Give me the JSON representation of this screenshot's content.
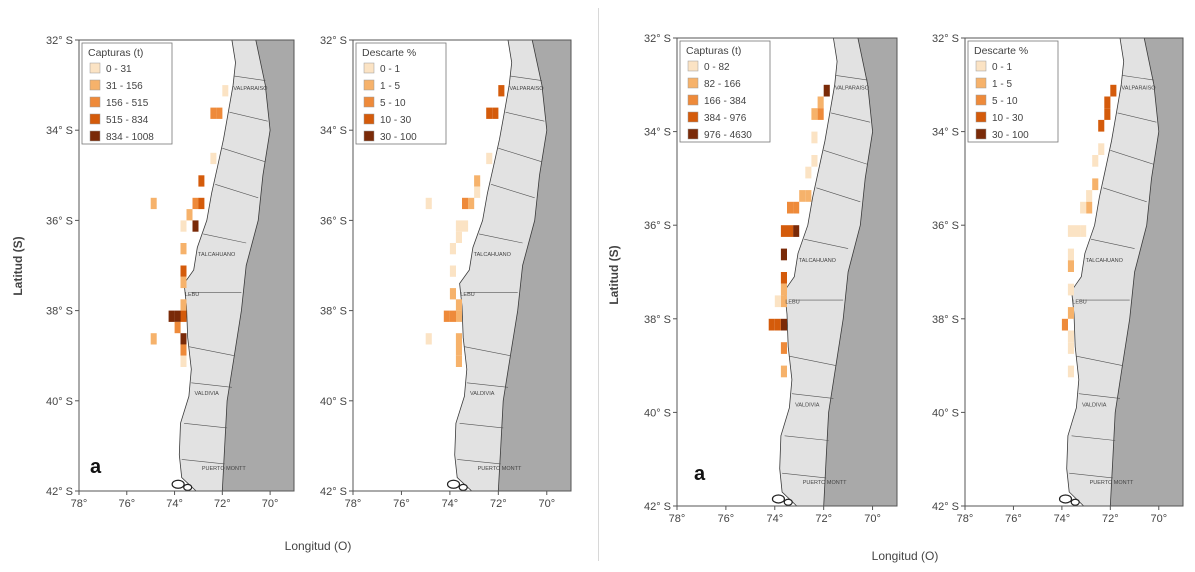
{
  "figures": [
    {
      "id": "left",
      "ylabel": "Latitud (S)",
      "xlabel": "Longitud (O)",
      "panel_letter": "a",
      "y_ticks": [
        "32° S",
        "34° S",
        "36° S",
        "38° S",
        "40° S",
        "42° S"
      ],
      "x_ticks": [
        "78°",
        "76°",
        "74°",
        "72°",
        "70°"
      ],
      "cities": [
        "VALPARAISO",
        "TALCAHUANO",
        "LEBU",
        "VALDIVIA",
        "PUERTO MONTT"
      ],
      "maps": [
        {
          "legend_title": "Capturas  (t)",
          "legend": [
            {
              "label": "0 - 31",
              "color": "#fbe3c4"
            },
            {
              "label": "31 - 156",
              "color": "#f6b26b"
            },
            {
              "label": "156 - 515",
              "color": "#ee8a3a"
            },
            {
              "label": "515 - 834",
              "color": "#d45b0b"
            },
            {
              "label": "834 - 1008",
              "color": "#7a2a08"
            }
          ],
          "cells": [
            {
              "lon": -71.875,
              "lat": -33.125,
              "c": 0
            },
            {
              "lon": -72.125,
              "lat": -33.625,
              "c": 2
            },
            {
              "lon": -72.375,
              "lat": -33.625,
              "c": 2
            },
            {
              "lon": -72.375,
              "lat": -34.625,
              "c": 0
            },
            {
              "lon": -72.875,
              "lat": -35.125,
              "c": 3
            },
            {
              "lon": -72.875,
              "lat": -35.625,
              "c": 3
            },
            {
              "lon": -73.125,
              "lat": -35.625,
              "c": 2
            },
            {
              "lon": -74.875,
              "lat": -35.625,
              "c": 1
            },
            {
              "lon": -73.125,
              "lat": -36.125,
              "c": 4
            },
            {
              "lon": -73.375,
              "lat": -35.875,
              "c": 1
            },
            {
              "lon": -73.625,
              "lat": -36.125,
              "c": 0
            },
            {
              "lon": -73.625,
              "lat": -36.625,
              "c": 1
            },
            {
              "lon": -73.625,
              "lat": -37.125,
              "c": 3
            },
            {
              "lon": -73.625,
              "lat": -37.375,
              "c": 1
            },
            {
              "lon": -73.625,
              "lat": -37.875,
              "c": 1
            },
            {
              "lon": -73.625,
              "lat": -38.125,
              "c": 3
            },
            {
              "lon": -73.875,
              "lat": -38.125,
              "c": 4
            },
            {
              "lon": -74.125,
              "lat": -38.125,
              "c": 4
            },
            {
              "lon": -73.875,
              "lat": -38.375,
              "c": 2
            },
            {
              "lon": -73.625,
              "lat": -38.625,
              "c": 4
            },
            {
              "lon": -74.875,
              "lat": -38.625,
              "c": 1
            },
            {
              "lon": -73.625,
              "lat": -38.875,
              "c": 2
            },
            {
              "lon": -73.625,
              "lat": -39.125,
              "c": 0
            }
          ]
        },
        {
          "legend_title": "Descarte %",
          "legend": [
            {
              "label": "0 - 1",
              "color": "#fbe3c4"
            },
            {
              "label": "1 - 5",
              "color": "#f6b26b"
            },
            {
              "label": "5 - 10",
              "color": "#ee8a3a"
            },
            {
              "label": "10 - 30",
              "color": "#d45b0b"
            },
            {
              "label": "30 - 100",
              "color": "#7a2a08"
            }
          ],
          "cells": [
            {
              "lon": -71.875,
              "lat": -33.125,
              "c": 3
            },
            {
              "lon": -72.125,
              "lat": -33.625,
              "c": 3
            },
            {
              "lon": -72.375,
              "lat": -33.625,
              "c": 3
            },
            {
              "lon": -72.375,
              "lat": -34.625,
              "c": 0
            },
            {
              "lon": -72.875,
              "lat": -35.125,
              "c": 1
            },
            {
              "lon": -72.875,
              "lat": -35.375,
              "c": 0
            },
            {
              "lon": -73.125,
              "lat": -35.625,
              "c": 1
            },
            {
              "lon": -74.875,
              "lat": -35.625,
              "c": 0
            },
            {
              "lon": -73.375,
              "lat": -35.625,
              "c": 2
            },
            {
              "lon": -73.375,
              "lat": -36.125,
              "c": 0
            },
            {
              "lon": -73.625,
              "lat": -36.125,
              "c": 0
            },
            {
              "lon": -73.625,
              "lat": -36.375,
              "c": 0
            },
            {
              "lon": -73.875,
              "lat": -36.625,
              "c": 0
            },
            {
              "lon": -73.875,
              "lat": -37.125,
              "c": 0
            },
            {
              "lon": -73.875,
              "lat": -37.625,
              "c": 1
            },
            {
              "lon": -73.625,
              "lat": -37.875,
              "c": 1
            },
            {
              "lon": -73.625,
              "lat": -38.125,
              "c": 1
            },
            {
              "lon": -73.875,
              "lat": -38.125,
              "c": 2
            },
            {
              "lon": -74.125,
              "lat": -38.125,
              "c": 2
            },
            {
              "lon": -73.625,
              "lat": -38.625,
              "c": 1
            },
            {
              "lon": -74.875,
              "lat": -38.625,
              "c": 0
            },
            {
              "lon": -73.625,
              "lat": -38.875,
              "c": 1
            },
            {
              "lon": -73.625,
              "lat": -39.125,
              "c": 1
            }
          ]
        }
      ]
    },
    {
      "id": "right",
      "ylabel": "Latitud (S)",
      "xlabel": "Longitud (O)",
      "panel_letter": "a",
      "y_ticks": [
        "32° S",
        "34° S",
        "36° S",
        "38° S",
        "40° S",
        "42° S"
      ],
      "x_ticks": [
        "78°",
        "76°",
        "74°",
        "72°",
        "70°"
      ],
      "cities": [
        "VALPARAISO",
        "TALCAHUANO",
        "LEBU",
        "VALDIVIA",
        "PUERTO MONTT"
      ],
      "maps": [
        {
          "legend_title": "Capturas  (t)",
          "legend": [
            {
              "label": "0 - 82",
              "color": "#fbe3c4"
            },
            {
              "label": "82 - 166",
              "color": "#f6b26b"
            },
            {
              "label": "166 - 384",
              "color": "#ee8a3a"
            },
            {
              "label": "384 - 976",
              "color": "#d45b0b"
            },
            {
              "label": "976 - 4630",
              "color": "#7a2a08"
            }
          ],
          "cells": [
            {
              "lon": -71.875,
              "lat": -33.125,
              "c": 4
            },
            {
              "lon": -72.125,
              "lat": -33.375,
              "c": 1
            },
            {
              "lon": -72.125,
              "lat": -33.625,
              "c": 2
            },
            {
              "lon": -72.375,
              "lat": -33.625,
              "c": 1
            },
            {
              "lon": -72.375,
              "lat": -34.125,
              "c": 0
            },
            {
              "lon": -72.375,
              "lat": -34.625,
              "c": 0
            },
            {
              "lon": -72.625,
              "lat": -34.875,
              "c": 0
            },
            {
              "lon": -72.625,
              "lat": -35.375,
              "c": 1
            },
            {
              "lon": -72.875,
              "lat": -35.375,
              "c": 1
            },
            {
              "lon": -73.125,
              "lat": -35.625,
              "c": 2
            },
            {
              "lon": -73.375,
              "lat": -35.625,
              "c": 2
            },
            {
              "lon": -73.125,
              "lat": -36.125,
              "c": 4
            },
            {
              "lon": -73.375,
              "lat": -36.125,
              "c": 3
            },
            {
              "lon": -73.625,
              "lat": -36.125,
              "c": 3
            },
            {
              "lon": -73.625,
              "lat": -36.625,
              "c": 4
            },
            {
              "lon": -73.625,
              "lat": -37.125,
              "c": 3
            },
            {
              "lon": -73.625,
              "lat": -37.375,
              "c": 1
            },
            {
              "lon": -73.625,
              "lat": -37.625,
              "c": 1
            },
            {
              "lon": -73.875,
              "lat": -37.625,
              "c": 0
            },
            {
              "lon": -73.625,
              "lat": -38.125,
              "c": 4
            },
            {
              "lon": -73.875,
              "lat": -38.125,
              "c": 3
            },
            {
              "lon": -74.125,
              "lat": -38.125,
              "c": 3
            },
            {
              "lon": -73.625,
              "lat": -38.625,
              "c": 2
            },
            {
              "lon": -73.625,
              "lat": -39.125,
              "c": 1
            }
          ]
        },
        {
          "legend_title": "Descarte %",
          "legend": [
            {
              "label": "0 - 1",
              "color": "#fbe3c4"
            },
            {
              "label": "1 - 5",
              "color": "#f6b26b"
            },
            {
              "label": "5 - 10",
              "color": "#ee8a3a"
            },
            {
              "label": "10 - 30",
              "color": "#d45b0b"
            },
            {
              "label": "30 - 100",
              "color": "#7a2a08"
            }
          ],
          "cells": [
            {
              "lon": -71.875,
              "lat": -33.125,
              "c": 3
            },
            {
              "lon": -72.125,
              "lat": -33.375,
              "c": 3
            },
            {
              "lon": -72.125,
              "lat": -33.625,
              "c": 3
            },
            {
              "lon": -72.375,
              "lat": -33.875,
              "c": 3
            },
            {
              "lon": -72.375,
              "lat": -34.375,
              "c": 0
            },
            {
              "lon": -72.625,
              "lat": -34.625,
              "c": 0
            },
            {
              "lon": -72.625,
              "lat": -35.125,
              "c": 1
            },
            {
              "lon": -72.875,
              "lat": -35.375,
              "c": 0
            },
            {
              "lon": -72.875,
              "lat": -35.625,
              "c": 1
            },
            {
              "lon": -73.125,
              "lat": -35.625,
              "c": 0
            },
            {
              "lon": -73.125,
              "lat": -36.125,
              "c": 0
            },
            {
              "lon": -73.375,
              "lat": -36.125,
              "c": 0
            },
            {
              "lon": -73.625,
              "lat": -36.125,
              "c": 0
            },
            {
              "lon": -73.625,
              "lat": -36.625,
              "c": 0
            },
            {
              "lon": -73.625,
              "lat": -36.875,
              "c": 1
            },
            {
              "lon": -73.625,
              "lat": -37.375,
              "c": 0
            },
            {
              "lon": -73.625,
              "lat": -37.875,
              "c": 1
            },
            {
              "lon": -73.875,
              "lat": -38.125,
              "c": 2
            },
            {
              "lon": -73.625,
              "lat": -38.375,
              "c": 0
            },
            {
              "lon": -73.625,
              "lat": -38.625,
              "c": 0
            },
            {
              "lon": -73.625,
              "lat": -39.125,
              "c": 0
            }
          ]
        }
      ]
    }
  ],
  "colors": {
    "land": "#e2e2e2",
    "east_shade": "#a9a9a9",
    "frame": "#555555",
    "text": "#444444"
  }
}
